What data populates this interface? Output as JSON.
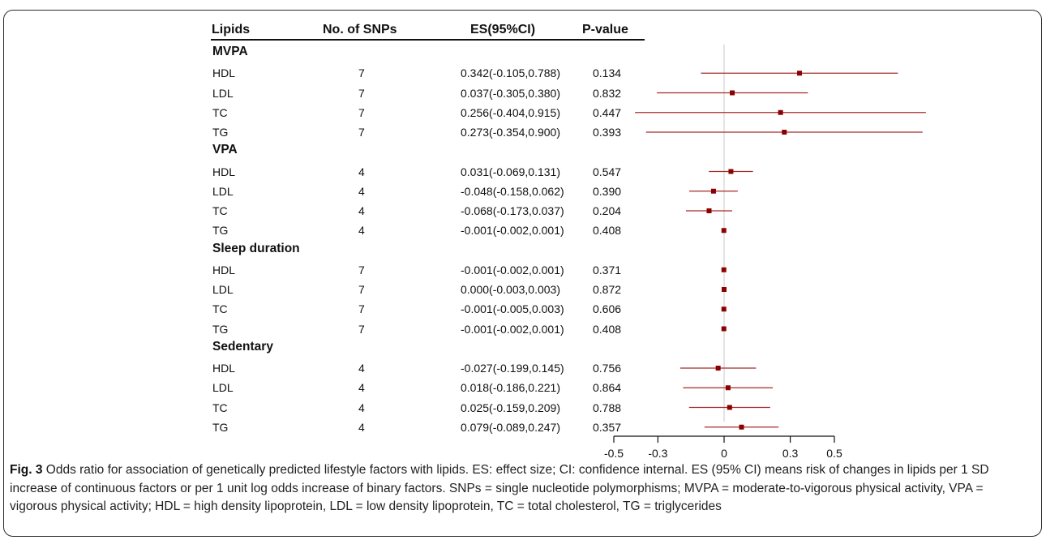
{
  "header": {
    "lipids": "Lipids",
    "snps": "No. of SNPs",
    "es": "ES(95%CI)",
    "pvalue": "P-value"
  },
  "caption": {
    "label": "Fig. 3",
    "text": "Odds ratio for association of genetically predicted lifestyle factors with lipids. ES: effect size; CI: confidence internal. ES (95% CI) means risk of changes in lipids per 1 SD increase of continuous factors or per 1 unit log odds increase of binary factors. SNPs = single nucleotide polymorphisms; MVPA = moderate-to-vigorous physical activity, VPA = vigorous physical activity; HDL = high density lipoprotein, LDL = low density lipoprotein, TC = total cholesterol, TG = triglycerides"
  },
  "colors": {
    "marker": "#8b0000",
    "ci_line": "#a52a2a",
    "zero_line": "#c8c8c8",
    "axis": "#111111"
  },
  "chart_data": {
    "type": "forest",
    "x_ticks": [
      "-0.5",
      "-0.3",
      "0",
      "0.3",
      "0.5"
    ],
    "x_tick_values": [
      -0.5,
      -0.3,
      0,
      0.3,
      0.5
    ],
    "reference_line": 0,
    "groups": [
      {
        "name": "MVPA",
        "rows": [
          {
            "lipid": "HDL",
            "snps": "7",
            "es_text": "0.342(-0.105,0.788)",
            "p": "0.134",
            "es": 0.342,
            "lo": -0.105,
            "hi": 0.788
          },
          {
            "lipid": "LDL",
            "snps": "7",
            "es_text": "0.037(-0.305,0.380)",
            "p": "0.832",
            "es": 0.037,
            "lo": -0.305,
            "hi": 0.38
          },
          {
            "lipid": "TC",
            "snps": "7",
            "es_text": "0.256(-0.404,0.915)",
            "p": "0.447",
            "es": 0.256,
            "lo": -0.404,
            "hi": 0.915
          },
          {
            "lipid": "TG",
            "snps": "7",
            "es_text": "0.273(-0.354,0.900)",
            "p": "0.393",
            "es": 0.273,
            "lo": -0.354,
            "hi": 0.9
          }
        ]
      },
      {
        "name": "VPA",
        "rows": [
          {
            "lipid": "HDL",
            "snps": "4",
            "es_text": "0.031(-0.069,0.131)",
            "p": "0.547",
            "es": 0.031,
            "lo": -0.069,
            "hi": 0.131
          },
          {
            "lipid": "LDL",
            "snps": "4",
            "es_text": "-0.048(-0.158,0.062)",
            "p": "0.390",
            "es": -0.048,
            "lo": -0.158,
            "hi": 0.062
          },
          {
            "lipid": "TC",
            "snps": "4",
            "es_text": "-0.068(-0.173,0.037)",
            "p": "0.204",
            "es": -0.068,
            "lo": -0.173,
            "hi": 0.037
          },
          {
            "lipid": "TG",
            "snps": "4",
            "es_text": "-0.001(-0.002,0.001)",
            "p": "0.408",
            "es": -0.001,
            "lo": -0.002,
            "hi": 0.001
          }
        ]
      },
      {
        "name": "Sleep duration",
        "rows": [
          {
            "lipid": "HDL",
            "snps": "7",
            "es_text": "-0.001(-0.002,0.001)",
            "p": "0.371",
            "es": -0.001,
            "lo": -0.002,
            "hi": 0.001
          },
          {
            "lipid": "LDL",
            "snps": "7",
            "es_text": "0.000(-0.003,0.003)",
            "p": "0.872",
            "es": 0.0,
            "lo": -0.003,
            "hi": 0.003
          },
          {
            "lipid": "TC",
            "snps": "7",
            "es_text": "-0.001(-0.005,0.003)",
            "p": "0.606",
            "es": -0.001,
            "lo": -0.005,
            "hi": 0.003
          },
          {
            "lipid": "TG",
            "snps": "7",
            "es_text": "-0.001(-0.002,0.001)",
            "p": "0.408",
            "es": -0.001,
            "lo": -0.002,
            "hi": 0.001
          }
        ]
      },
      {
        "name": "Sedentary",
        "rows": [
          {
            "lipid": "HDL",
            "snps": "4",
            "es_text": "-0.027(-0.199,0.145)",
            "p": "0.756",
            "es": -0.027,
            "lo": -0.199,
            "hi": 0.145
          },
          {
            "lipid": "LDL",
            "snps": "4",
            "es_text": "0.018(-0.186,0.221)",
            "p": "0.864",
            "es": 0.018,
            "lo": -0.186,
            "hi": 0.221
          },
          {
            "lipid": "TC",
            "snps": "4",
            "es_text": "0.025(-0.159,0.209)",
            "p": "0.788",
            "es": 0.025,
            "lo": -0.159,
            "hi": 0.209
          },
          {
            "lipid": "TG",
            "snps": "4",
            "es_text": "0.079(-0.089,0.247)",
            "p": "0.357",
            "es": 0.079,
            "lo": -0.089,
            "hi": 0.247
          }
        ]
      }
    ]
  }
}
